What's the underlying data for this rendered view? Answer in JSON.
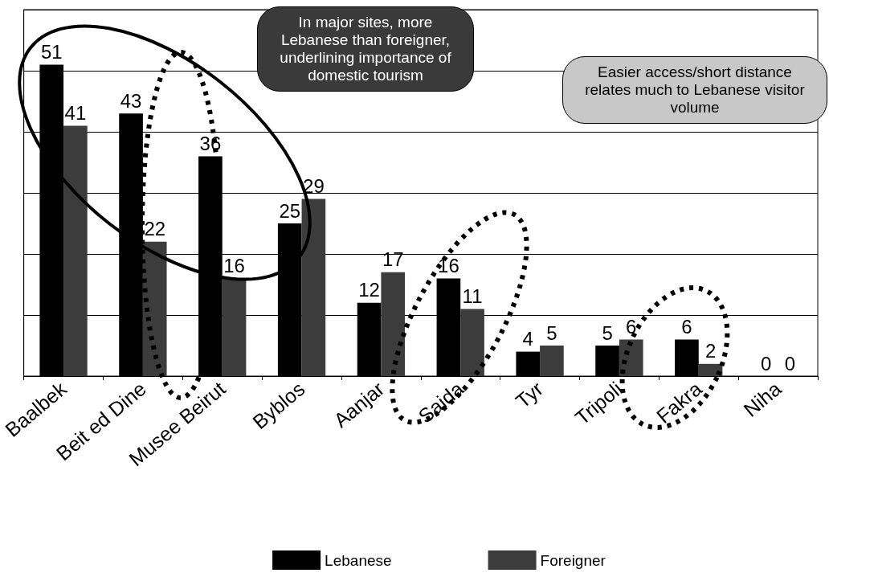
{
  "chart_data": {
    "type": "bar",
    "categories": [
      "Baalbek",
      "Beit ed Dine",
      "Musee Beirut",
      "Byblos",
      "Aanjar",
      "Saida",
      "Tyr",
      "Tripoli",
      "Fakra",
      "Niha"
    ],
    "series": [
      {
        "name": "Lebanese",
        "color": "#000000",
        "values": [
          51,
          43,
          36,
          25,
          12,
          16,
          4,
          5,
          6,
          0
        ]
      },
      {
        "name": "Foreigner",
        "color": "#3c3c3c",
        "values": [
          41,
          22,
          16,
          29,
          17,
          11,
          5,
          6,
          2,
          0
        ]
      }
    ],
    "ylim": [
      0,
      60
    ],
    "yticks": [
      {
        "value": 0,
        "label": null
      },
      {
        "value": 10,
        "label": null
      },
      {
        "value": 20,
        "label": null
      },
      {
        "value": 30,
        "label": null
      },
      {
        "value": 40,
        "label": null
      },
      {
        "value": 50,
        "label": null
      },
      {
        "value": 60,
        "label": null
      }
    ],
    "tick_labels": "x",
    "grid": "y",
    "legend": "bottom",
    "data_labels": true,
    "annotations": [
      "In major sites, more Lebanese than foreigner, underlining importance of domestic tourism",
      "Easier access/short distance relates much to Lebanese visitor volume"
    ]
  }
}
